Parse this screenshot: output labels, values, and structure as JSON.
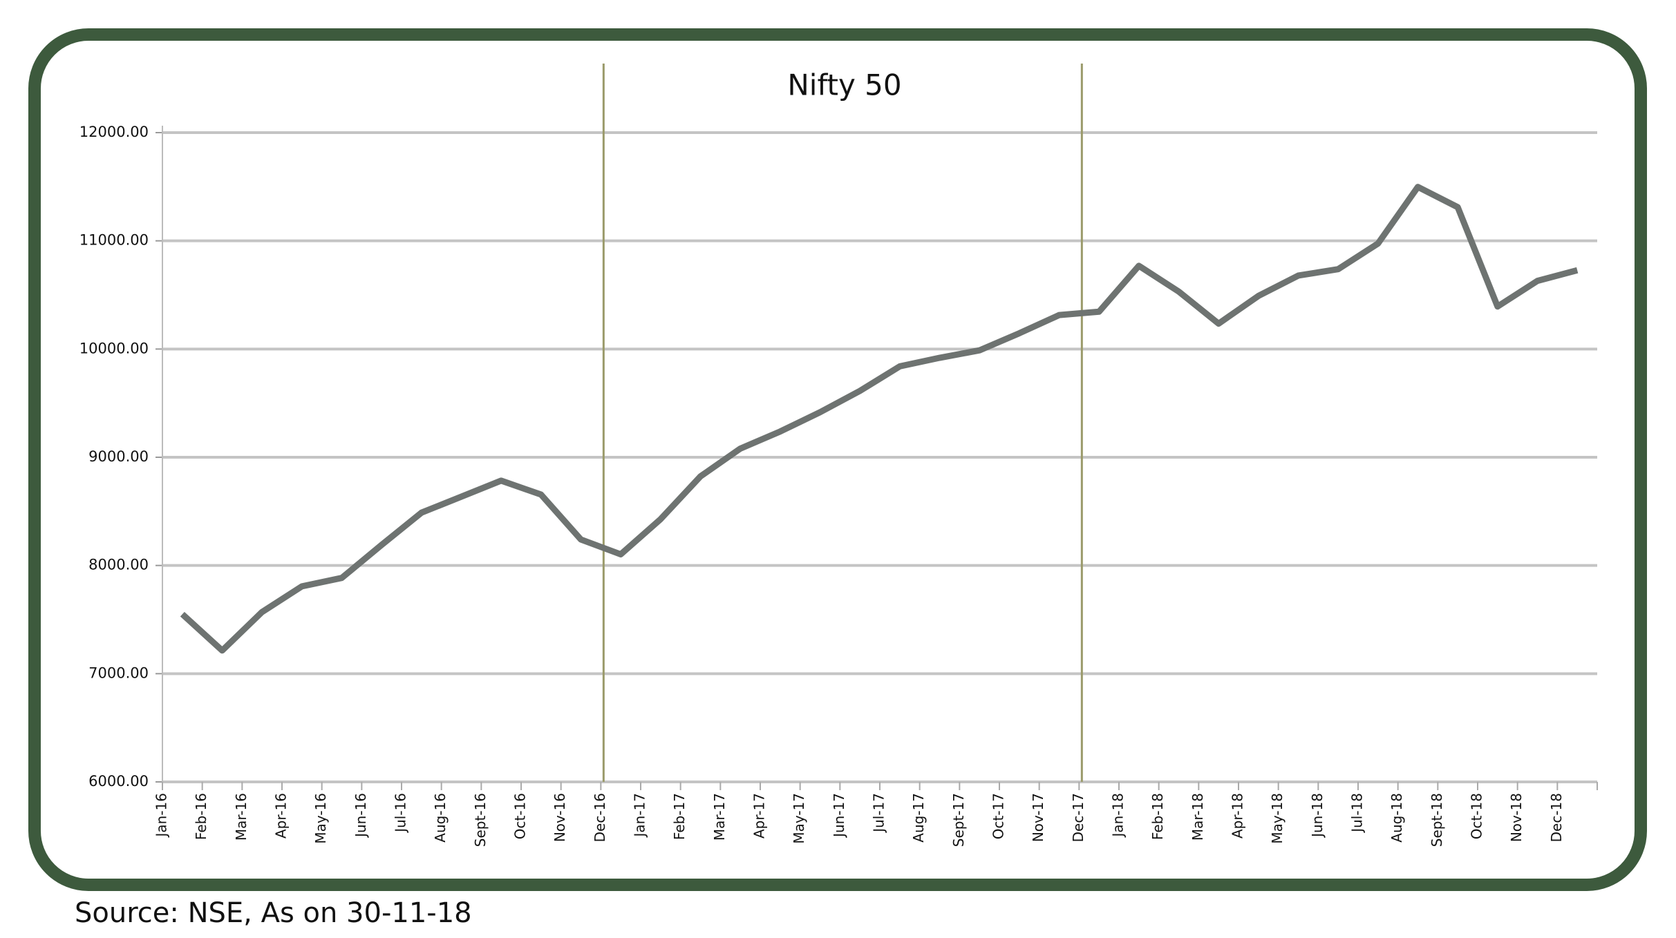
{
  "chart_data": {
    "type": "line",
    "title": "Nifty 50",
    "source": "Source: NSE, As on 30-11-18",
    "categories": [
      "Jan-16",
      "Feb-16",
      "Mar-16",
      "Apr-16",
      "May-16",
      "Jun-16",
      "Jul-16",
      "Aug-16",
      "Sept-16",
      "Oct-16",
      "Nov-16",
      "Dec-16",
      "Jan-17",
      "Feb-17",
      "Mar-17",
      "Apr-17",
      "May-17",
      "Jun-17",
      "Jul-17",
      "Aug-17",
      "Sept-17",
      "Oct-17",
      "Nov-17",
      "Dec-17",
      "Jan-18",
      "Feb-18",
      "Mar-18",
      "Apr-18",
      "May-18",
      "Jun-18",
      "Jul-18",
      "Aug-18",
      "Sept-18",
      "Oct-18",
      "Nov-18",
      "Dec-18"
    ],
    "series": [
      {
        "name": "Nifty 50",
        "color": "#6e7371",
        "values": [
          7550,
          7214,
          7570,
          7807,
          7885,
          8190,
          8488,
          8636,
          8784,
          8655,
          8240,
          8103,
          8428,
          8823,
          9080,
          9238,
          9416,
          9613,
          9840,
          9919,
          9988,
          10146,
          10314,
          10345,
          10769,
          10531,
          10235,
          10491,
          10679,
          10738,
          10975,
          11498,
          11311,
          10393,
          10630,
          10728
        ]
      }
    ],
    "ylim": [
      6000,
      12000
    ],
    "yticks": [
      {
        "value": 6000,
        "label": "6000.00"
      },
      {
        "value": 7000,
        "label": "7000.00"
      },
      {
        "value": 8000,
        "label": "8000.00"
      },
      {
        "value": 9000,
        "label": "9000.00"
      },
      {
        "value": 10000,
        "label": "10000.00"
      },
      {
        "value": 11000,
        "label": "11000.00"
      },
      {
        "value": 12000,
        "label": "12000.00"
      }
    ],
    "grid": true
  }
}
